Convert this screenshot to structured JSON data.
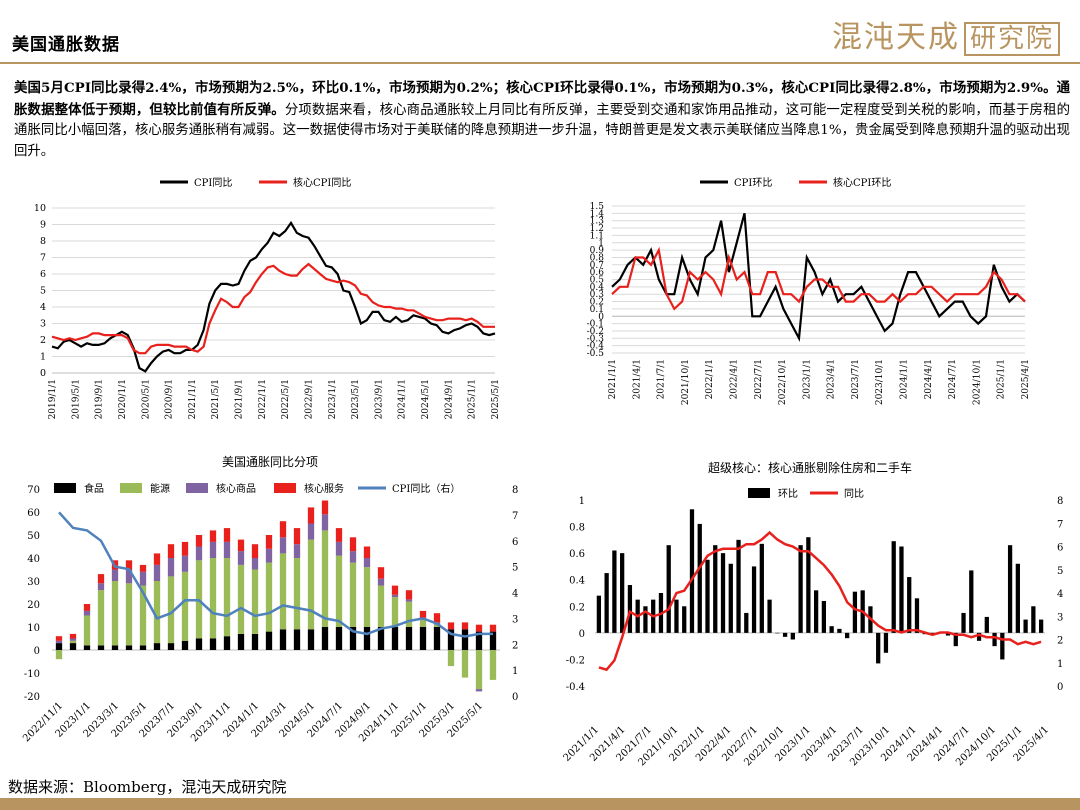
{
  "header": {
    "title": "美国通胀数据",
    "logo_text": "混沌天成",
    "logo_box": "研究院"
  },
  "summary": {
    "bold": "美国5月CPI同比录得2.4%，市场预期为2.5%，环比0.1%，市场预期为0.2%；核心CPI环比录得0.1%，市场预期为0.3%，核心CPI同比录得2.8%，市场预期为2.9%。通胀数据整体低于预期，但较比前值有所反弹。",
    "normal": "分项数据来看，核心商品通胀较上月同比有所反弹，主要受到交通和家饰用品推动，这可能一定程度受到关税的影响，而基于房租的通胀同比小幅回落，核心服务通胀稍有减弱。这一数据使得市场对于美联储的降息预期进一步升温，特朗普更是发文表示美联储应当降息1%，贵金属受到降息预期升温的驱动出现回升。"
  },
  "source": "数据来源：Bloomberg，混沌天成研究院",
  "colors": {
    "black": "#000000",
    "red": "#e8211d",
    "green": "#9bbb59",
    "purple": "#8064a2",
    "blue": "#4f81bd",
    "gold": "#b89560"
  },
  "chart_data": [
    {
      "type": "line",
      "title": "",
      "legend": [
        "CPI同比",
        "核心CPI同比"
      ],
      "legend_position": "top",
      "x_tick_labels": [
        "2019/1/1",
        "2019/5/1",
        "2019/9/1",
        "2020/1/1",
        "2020/5/1",
        "2020/9/1",
        "2021/1/1",
        "2021/5/1",
        "2021/9/1",
        "2022/1/1",
        "2022/5/1",
        "2022/9/1",
        "2023/1/1",
        "2023/5/1",
        "2023/9/1",
        "2024/1/1",
        "2024/5/1",
        "2024/9/1",
        "2025/1/1",
        "2025/5/1"
      ],
      "ylim": [
        0,
        10
      ],
      "y_ticks": [
        0,
        1,
        2,
        3,
        4,
        5,
        6,
        7,
        8,
        9,
        10
      ],
      "grid": "horizontal",
      "series": [
        {
          "name": "CPI同比",
          "color": "#000000",
          "values": [
            1.6,
            1.5,
            1.9,
            2.0,
            1.8,
            1.6,
            1.8,
            1.7,
            1.7,
            1.8,
            2.1,
            2.3,
            2.5,
            2.3,
            1.5,
            0.3,
            0.1,
            0.6,
            1.0,
            1.3,
            1.4,
            1.2,
            1.2,
            1.4,
            1.4,
            1.7,
            2.6,
            4.2,
            5.0,
            5.4,
            5.4,
            5.3,
            5.4,
            6.2,
            6.8,
            7.0,
            7.5,
            7.9,
            8.5,
            8.3,
            8.6,
            9.1,
            8.5,
            8.3,
            8.2,
            7.7,
            7.1,
            6.5,
            6.4,
            6.0,
            5.0,
            4.9,
            4.0,
            3.0,
            3.2,
            3.7,
            3.7,
            3.2,
            3.1,
            3.4,
            3.1,
            3.2,
            3.5,
            3.4,
            3.3,
            3.0,
            2.9,
            2.5,
            2.4,
            2.6,
            2.7,
            2.9,
            3.0,
            2.8,
            2.4,
            2.3,
            2.4
          ]
        },
        {
          "name": "核心CPI同比",
          "color": "#e8211d",
          "values": [
            2.2,
            2.1,
            2.0,
            2.1,
            2.0,
            2.1,
            2.2,
            2.4,
            2.4,
            2.3,
            2.3,
            2.3,
            2.3,
            2.1,
            1.4,
            1.2,
            1.2,
            1.6,
            1.7,
            1.7,
            1.7,
            1.6,
            1.6,
            1.6,
            1.4,
            1.3,
            1.6,
            3.0,
            3.8,
            4.5,
            4.3,
            4.0,
            4.0,
            4.6,
            4.9,
            5.5,
            6.0,
            6.4,
            6.5,
            6.2,
            6.0,
            5.9,
            5.9,
            6.3,
            6.6,
            6.3,
            6.0,
            5.7,
            5.6,
            5.5,
            5.6,
            5.5,
            5.3,
            4.8,
            4.7,
            4.3,
            4.1,
            4.0,
            4.0,
            3.9,
            3.9,
            3.8,
            3.8,
            3.6,
            3.4,
            3.3,
            3.2,
            3.2,
            3.3,
            3.3,
            3.3,
            3.2,
            3.3,
            3.1,
            2.8,
            2.8,
            2.8
          ]
        }
      ]
    },
    {
      "type": "line",
      "title": "",
      "legend": [
        "CPI环比",
        "核心CPI环比"
      ],
      "legend_position": "top",
      "x_tick_labels": [
        "2021/1/1",
        "2021/4/1",
        "2021/7/1",
        "2021/10/1",
        "2022/1/1",
        "2022/4/1",
        "2022/7/1",
        "2022/10/1",
        "2023/1/1",
        "2023/4/1",
        "2023/7/1",
        "2023/10/1",
        "2024/1/1",
        "2024/4/1",
        "2024/7/1",
        "2024/10/1",
        "2025/1/1",
        "2025/4/1"
      ],
      "ylim": [
        -0.5,
        1.5
      ],
      "y_ticks": [
        -0.5,
        -0.4,
        -0.3,
        -0.2,
        -0.1,
        0,
        0.1,
        0.2,
        0.3,
        0.4,
        0.5,
        0.6,
        0.7,
        0.8,
        0.9,
        1,
        1.1,
        1.2,
        1.3,
        1.4,
        1.5
      ],
      "grid": "horizontal",
      "series": [
        {
          "name": "CPI环比",
          "color": "#000000",
          "values": [
            0.4,
            0.5,
            0.7,
            0.8,
            0.7,
            0.9,
            0.5,
            0.3,
            0.3,
            0.8,
            0.5,
            0.3,
            0.8,
            0.9,
            1.3,
            0.6,
            1.0,
            1.4,
            0.0,
            0.0,
            0.2,
            0.4,
            0.1,
            -0.1,
            -0.3,
            0.8,
            0.6,
            0.3,
            0.5,
            0.2,
            0.3,
            0.3,
            0.4,
            0.2,
            0.0,
            -0.2,
            -0.1,
            0.3,
            0.6,
            0.6,
            0.4,
            0.2,
            0.0,
            0.1,
            0.2,
            0.2,
            0.0,
            -0.1,
            0.0,
            0.7,
            0.4,
            0.2,
            0.3,
            0.2
          ]
        },
        {
          "name": "核心CPI环比",
          "color": "#e8211d",
          "values": [
            0.3,
            0.4,
            0.4,
            0.8,
            0.8,
            0.7,
            0.9,
            0.3,
            0.1,
            0.2,
            0.6,
            0.5,
            0.6,
            0.5,
            0.3,
            0.8,
            0.5,
            0.6,
            0.3,
            0.3,
            0.6,
            0.6,
            0.3,
            0.3,
            0.2,
            0.4,
            0.5,
            0.5,
            0.4,
            0.4,
            0.2,
            0.2,
            0.3,
            0.3,
            0.2,
            0.2,
            0.3,
            0.2,
            0.3,
            0.3,
            0.4,
            0.4,
            0.3,
            0.2,
            0.3,
            0.3,
            0.3,
            0.3,
            0.4,
            0.6,
            0.5,
            0.3,
            0.3,
            0.2
          ]
        }
      ]
    },
    {
      "type": "bar",
      "title": "美国通胀同比分项",
      "legend": [
        "食品",
        "能源",
        "核心商品",
        "核心服务",
        "CPI同比（右）"
      ],
      "legend_position": "top",
      "x_tick_labels": [
        "2022/11/1",
        "2023/1/1",
        "2023/3/1",
        "2023/5/1",
        "2023/7/1",
        "2023/9/1",
        "2023/11/1",
        "2024/1/1",
        "2024/3/1",
        "2024/5/1",
        "2024/7/1",
        "2024/9/1",
        "2024/11/1",
        "2025/1/1",
        "2025/3/1",
        "2025/5/1"
      ],
      "ylim_left": [
        -20,
        70
      ],
      "y_ticks_left": [
        -20,
        -10,
        0,
        10,
        20,
        30,
        40,
        50,
        60,
        70
      ],
      "ylim_right": [
        0,
        8
      ],
      "y_ticks_right": [
        0,
        1,
        2,
        3,
        4,
        5,
        6,
        7,
        8
      ],
      "stack_series": [
        {
          "name": "食品",
          "color": "#000000",
          "values": [
            3,
            3,
            2,
            2,
            2,
            2,
            2,
            3,
            3,
            4,
            5,
            5,
            6,
            7,
            7,
            8,
            9,
            9,
            9,
            10,
            10,
            10,
            10,
            10,
            10,
            10,
            10,
            10,
            9,
            9,
            8,
            8
          ]
        },
        {
          "name": "能源",
          "color": "#9bbb59",
          "values": [
            -4,
            1,
            13,
            24,
            28,
            27,
            26,
            27,
            29,
            30,
            34,
            35,
            34,
            30,
            28,
            30,
            33,
            31,
            39,
            42,
            31,
            28,
            26,
            18,
            13,
            11,
            3,
            1,
            -7,
            -12,
            -17,
            -13
          ]
        },
        {
          "name": "核心商品",
          "color": "#8064a2",
          "values": [
            1,
            1,
            2,
            3,
            5,
            6,
            6,
            7,
            8,
            7,
            6,
            7,
            7,
            6,
            5,
            6,
            7,
            6,
            7,
            7,
            6,
            5,
            4,
            3,
            1,
            1,
            1,
            1,
            0,
            0,
            -1,
            0
          ]
        },
        {
          "name": "核心服务",
          "color": "#e8211d",
          "values": [
            2,
            2,
            3,
            4,
            4,
            4,
            3,
            5,
            6,
            6,
            5,
            5,
            6,
            5,
            6,
            6,
            7,
            7,
            7,
            6,
            6,
            6,
            5,
            5,
            4,
            4,
            3,
            4,
            3,
            3,
            3,
            3
          ]
        }
      ],
      "line_series": {
        "name": "CPI同比（右）",
        "color": "#4f81bd",
        "axis": "right",
        "values": [
          7.1,
          6.5,
          6.4,
          6.0,
          5.0,
          4.9,
          4.0,
          3.0,
          3.2,
          3.7,
          3.7,
          3.2,
          3.1,
          3.4,
          3.1,
          3.2,
          3.5,
          3.4,
          3.3,
          3.0,
          2.9,
          2.5,
          2.4,
          2.6,
          2.7,
          2.9,
          3.0,
          2.8,
          2.4,
          2.3,
          2.4,
          2.4
        ]
      }
    },
    {
      "type": "bar",
      "title": "超级核心：核心通胀剔除住房和二手车",
      "legend": [
        "环比",
        "同比"
      ],
      "legend_position": "top",
      "x_tick_labels": [
        "2021/1/1",
        "2021/4/1",
        "2021/7/1",
        "2021/10/1",
        "2022/1/1",
        "2022/4/1",
        "2022/7/1",
        "2022/10/1",
        "2023/1/1",
        "2023/4/1",
        "2023/7/1",
        "2023/10/1",
        "2024/1/1",
        "2024/4/1",
        "2024/7/1",
        "2024/10/1",
        "2025/1/1",
        "2025/4/1"
      ],
      "ylim_left": [
        -0.4,
        1
      ],
      "y_ticks_left": [
        -0.4,
        -0.2,
        0,
        0.2,
        0.4,
        0.6,
        0.8,
        1
      ],
      "ylim_right": [
        0,
        8
      ],
      "y_ticks_right": [
        0,
        1,
        2,
        3,
        4,
        5,
        6,
        7,
        8
      ],
      "bar_series": {
        "name": "环比",
        "color": "#000000",
        "values": [
          0.28,
          0.45,
          0.62,
          0.6,
          0.36,
          0.25,
          0.2,
          0.25,
          0.3,
          0.66,
          0.25,
          0.2,
          0.93,
          0.82,
          0.55,
          0.66,
          0.6,
          0.52,
          0.7,
          0.15,
          0.5,
          0.67,
          0.25,
          0.0,
          -0.03,
          -0.05,
          0.66,
          0.72,
          0.32,
          0.24,
          0.05,
          0.03,
          -0.04,
          0.31,
          0.32,
          0.2,
          -0.23,
          -0.15,
          0.69,
          0.65,
          0.42,
          0.26,
          -0.01,
          -0.01,
          0.0,
          -0.02,
          -0.1,
          0.15,
          0.47,
          -0.06,
          0.12,
          -0.1,
          -0.2,
          0.66,
          0.52,
          0.1,
          0.2,
          0.1
        ]
      },
      "line_series": {
        "name": "同比",
        "color": "#e8211d",
        "axis": "right",
        "values": [
          0.8,
          0.7,
          1.1,
          2.1,
          3.2,
          3.0,
          3.2,
          3.0,
          3.1,
          3.3,
          4.0,
          4.1,
          4.6,
          5.1,
          5.6,
          5.8,
          5.9,
          5.9,
          5.9,
          6.1,
          6.1,
          6.3,
          6.6,
          6.3,
          6.1,
          6.0,
          5.8,
          5.8,
          5.5,
          5.2,
          4.8,
          4.3,
          3.6,
          3.3,
          3.2,
          2.9,
          2.6,
          2.4,
          2.4,
          2.3,
          2.4,
          2.4,
          2.3,
          2.2,
          2.3,
          2.3,
          2.2,
          2.2,
          2.1,
          2.2,
          2.1,
          2.1,
          2.0,
          2.0,
          1.8,
          1.9,
          1.8,
          1.9
        ]
      }
    }
  ]
}
